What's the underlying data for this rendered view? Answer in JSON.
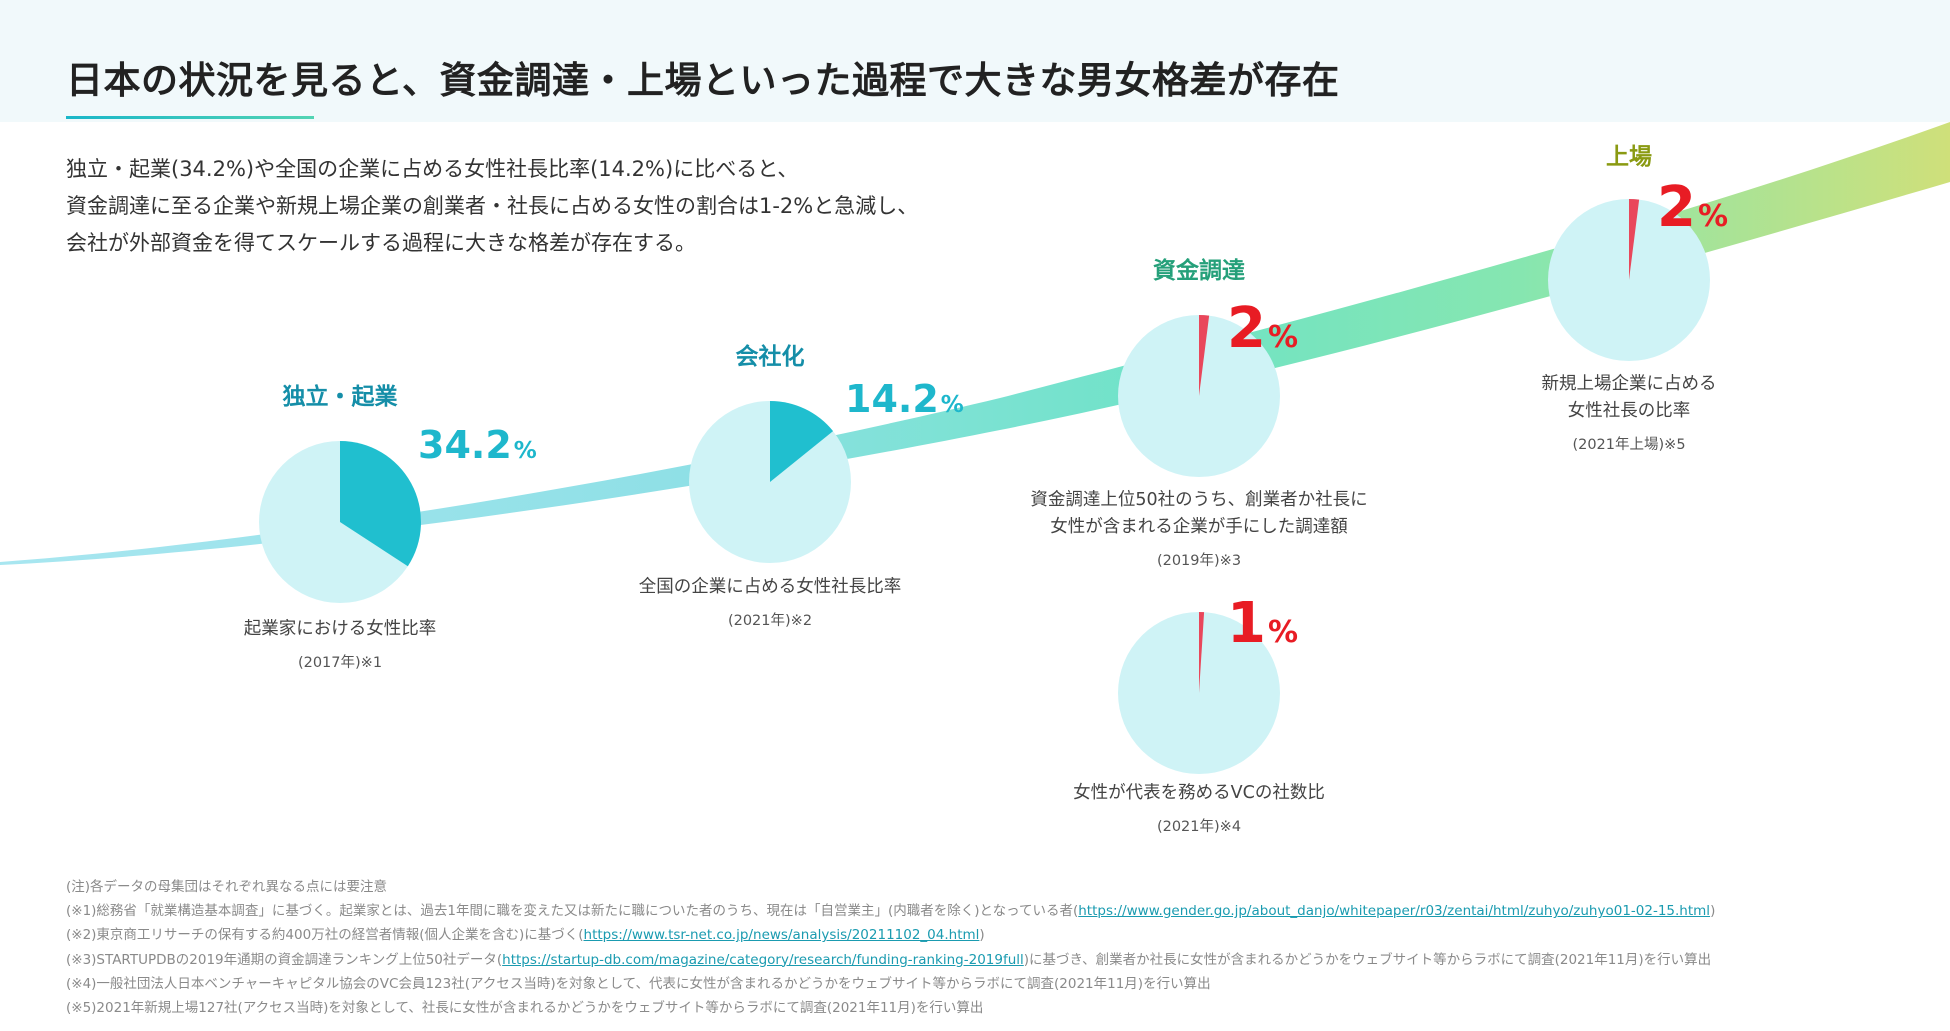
{
  "title": "日本の状況を見ると、資金調達・上場といった過程で大きな男女格差が存在",
  "intro": [
    "独立・起業(34.2%)や全国の企業に占める女性社長比率(14.2%)に比べると、",
    "資金調達に至る企業や新規上場企業の創業者・社長に占める女性の割合は1-2%と急減し、",
    "会社が外部資金を得てスケールする過程に大きな格差が存在する。"
  ],
  "colors": {
    "pie_bg": "#cff3f6",
    "pie_teal": "#20bfcf",
    "pie_red": "#e9475b",
    "stage_blue": "#158ea8",
    "stage_green": "#25a07a",
    "stage_olive": "#8a9a12",
    "value_teal": "#1eb7cc",
    "value_red": "#e81c24"
  },
  "chart_data": {
    "type": "pie",
    "series": [
      {
        "id": "entrepreneur",
        "stage": "独立・起業",
        "value": 34.2,
        "value_label": "34.2",
        "unit": "%",
        "desc": [
          "起業家における女性比率"
        ],
        "note": "(2017年)※1",
        "color": "teal"
      },
      {
        "id": "ceo",
        "stage": "会社化",
        "value": 14.2,
        "value_label": "14.2",
        "unit": "%",
        "desc": [
          "全国の企業に占める女性社長比率"
        ],
        "note": "(2021年)※2",
        "color": "teal"
      },
      {
        "id": "funding",
        "stage": "資金調達",
        "value": 2,
        "value_label": "2",
        "unit": "%",
        "desc": [
          "資金調達上位50社のうち、創業者か社長に",
          "女性が含まれる企業が手にした調達額"
        ],
        "note": "(2019年)※3",
        "color": "red"
      },
      {
        "id": "ipo",
        "stage": "上場",
        "value": 2,
        "value_label": "2",
        "unit": "%",
        "desc": [
          "新規上場企業に占める",
          "女性社長の比率"
        ],
        "note": "(2021年上場)※5",
        "color": "red"
      },
      {
        "id": "vc",
        "stage": "",
        "value": 1,
        "value_label": "1",
        "unit": "%",
        "desc": [
          "女性が代表を務めるVCの社数比"
        ],
        "note": "(2021年)※4",
        "color": "red"
      }
    ]
  },
  "footnotes": {
    "note0": "(注)各データの母集団はそれぞれ異なる点には要注意",
    "note1_pre": "(※1)総務省「就業構造基本調査」に基づく。起業家とは、過去1年間に職を変えた又は新たに職についた者のうち、現在は「自営業主」(内職者を除く)となっている者(",
    "note1_link": "https://www.gender.go.jp/about_danjo/whitepaper/r03/zentai/html/zuhyo/zuhyo01-02-15.html",
    "note1_post": ")",
    "note2_pre": "(※2)東京商工リサーチの保有する約400万社の経営者情報(個人企業を含む)に基づく(",
    "note2_link": "https://www.tsr-net.co.jp/news/analysis/20211102_04.html",
    "note2_post": ")",
    "note3_pre": "(※3)STARTUPDBの2019年通期の資金調達ランキング上位50社データ(",
    "note3_link": "https://startup-db.com/magazine/category/research/funding-ranking-2019full",
    "note3_post": ")に基づき、創業者か社長に女性が含まれるかどうかをウェブサイト等からラボにて調査(2021年11月)を行い算出",
    "note4": "(※4)一般社団法人日本ベンチャーキャピタル協会のVC会員123社(アクセス当時)を対象として、代表に女性が含まれるかどうかをウェブサイト等からラボにて調査(2021年11月)を行い算出",
    "note5": "(※5)2021年新規上場127社(アクセス当時)を対象として、社長に女性が含まれるかどうかをウェブサイト等からラボにて調査(2021年11月)を行い算出"
  }
}
